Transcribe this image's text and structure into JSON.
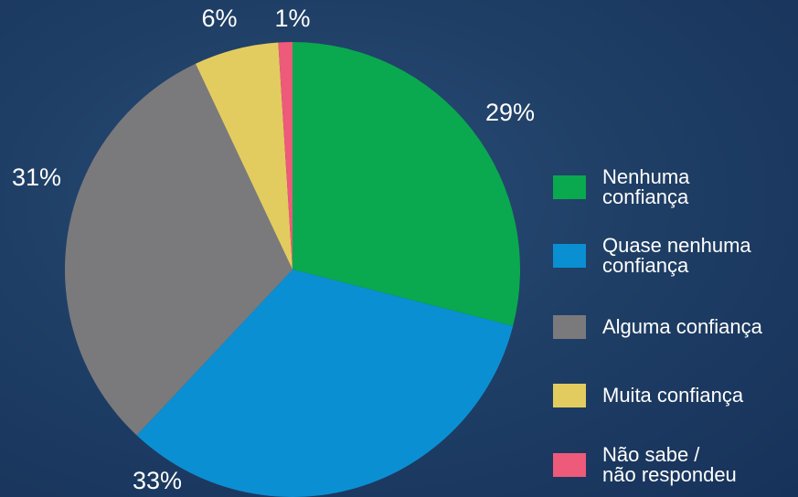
{
  "chart_data": {
    "type": "pie",
    "categories": [
      "Nenhuma\nconfiança",
      "Quase nenhuma\nconfiança",
      "Alguma confiança",
      "Muita confiança",
      "Não sabe /\nnão respondeu"
    ],
    "values": [
      29,
      33,
      31,
      6,
      1
    ],
    "value_labels": [
      "29%",
      "33%",
      "31%",
      "6%",
      "1%"
    ],
    "colors": [
      "#0aa84f",
      "#0b8fd3",
      "#7a7a7c",
      "#e3cc5f",
      "#ee5a79"
    ]
  }
}
